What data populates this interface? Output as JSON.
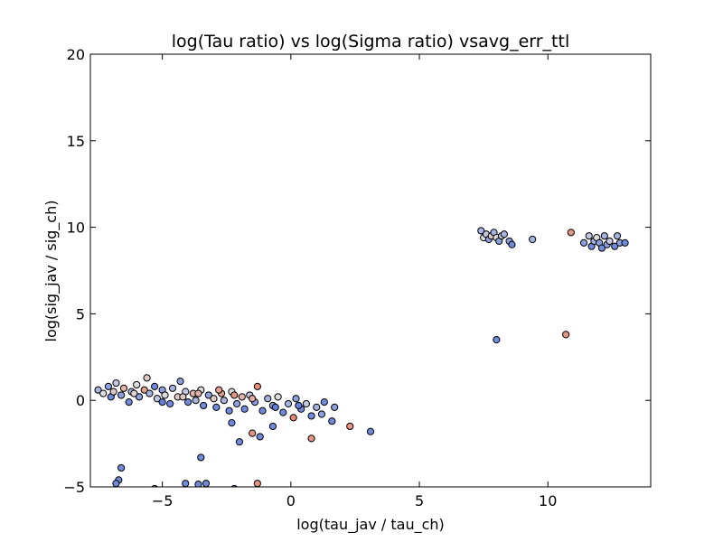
{
  "chart_data": {
    "type": "scatter",
    "title": "log(Tau ratio) vs log(Sigma ratio) vsavg_err_ttl",
    "xlabel": "log(tau_jav / tau_ch)",
    "ylabel": "log(sig_jav / sig_ch)",
    "xlim": [
      -7.8,
      14
    ],
    "ylim": [
      -5,
      20
    ],
    "xticks": [
      -5,
      0,
      5,
      10
    ],
    "xtick_labels": [
      "−5",
      "0",
      "5",
      "10"
    ],
    "yticks": [
      -5,
      0,
      5,
      10,
      15,
      20
    ],
    "ytick_labels": [
      "−5",
      "0",
      "5",
      "10",
      "15",
      "20"
    ],
    "grid": false,
    "legend": "none",
    "colormap": "coolwarm",
    "colors": {
      "low": "#5875dd",
      "mid": "#dcdde0",
      "high": "#e8775d",
      "edge": "#000000"
    },
    "points": [
      {
        "x": -7.5,
        "y": 0.6,
        "c": 0.3
      },
      {
        "x": -7.3,
        "y": 0.4,
        "c": 0.5
      },
      {
        "x": -7.1,
        "y": 0.8,
        "c": 0.2
      },
      {
        "x": -7.0,
        "y": 0.2,
        "c": 0.1
      },
      {
        "x": -6.9,
        "y": 0.5,
        "c": 0.6
      },
      {
        "x": -6.8,
        "y": 1.0,
        "c": 0.4
      },
      {
        "x": -6.6,
        "y": 0.3,
        "c": 0.2
      },
      {
        "x": -6.5,
        "y": 0.7,
        "c": 0.7
      },
      {
        "x": -6.3,
        "y": -0.1,
        "c": 0.1
      },
      {
        "x": -6.2,
        "y": 0.5,
        "c": 0.3
      },
      {
        "x": -6.0,
        "y": 0.9,
        "c": 0.5
      },
      {
        "x": -5.9,
        "y": 0.2,
        "c": 0.2
      },
      {
        "x": -5.7,
        "y": 0.6,
        "c": 0.8
      },
      {
        "x": -5.6,
        "y": 1.3,
        "c": 0.6
      },
      {
        "x": -5.5,
        "y": 0.4,
        "c": 0.3
      },
      {
        "x": -5.3,
        "y": 0.8,
        "c": 0.1
      },
      {
        "x": -5.2,
        "y": 0.1,
        "c": 0.4
      },
      {
        "x": -5.0,
        "y": 0.6,
        "c": 0.2
      },
      {
        "x": -4.9,
        "y": 0.3,
        "c": 0.5
      },
      {
        "x": -4.7,
        "y": -0.2,
        "c": 0.1
      },
      {
        "x": -4.6,
        "y": 0.7,
        "c": 0.3
      },
      {
        "x": -4.4,
        "y": 0.2,
        "c": 0.6
      },
      {
        "x": -4.3,
        "y": 1.1,
        "c": 0.2
      },
      {
        "x": -4.1,
        "y": 0.5,
        "c": 0.4
      },
      {
        "x": -4.0,
        "y": -0.1,
        "c": 0.1
      },
      {
        "x": -3.8,
        "y": 0.4,
        "c": 0.7
      },
      {
        "x": -3.7,
        "y": 0.0,
        "c": 0.3
      },
      {
        "x": -3.5,
        "y": 0.6,
        "c": 0.5
      },
      {
        "x": -3.4,
        "y": -0.3,
        "c": 0.1
      },
      {
        "x": -3.2,
        "y": 0.3,
        "c": 0.2
      },
      {
        "x": -3.0,
        "y": 0.1,
        "c": 0.6
      },
      {
        "x": -2.9,
        "y": -0.4,
        "c": 0.1
      },
      {
        "x": -2.7,
        "y": 0.4,
        "c": 0.8
      },
      {
        "x": -2.6,
        "y": 0.0,
        "c": 0.3
      },
      {
        "x": -2.4,
        "y": -0.6,
        "c": 0.1
      },
      {
        "x": -2.3,
        "y": 0.5,
        "c": 0.5
      },
      {
        "x": -2.1,
        "y": -0.2,
        "c": 0.2
      },
      {
        "x": -1.9,
        "y": 0.2,
        "c": 0.7
      },
      {
        "x": -1.8,
        "y": -0.5,
        "c": 0.1
      },
      {
        "x": -1.6,
        "y": 0.3,
        "c": 0.4
      },
      {
        "x": -1.4,
        "y": -0.1,
        "c": 0.2
      },
      {
        "x": -1.3,
        "y": 0.8,
        "c": 0.9
      },
      {
        "x": -1.1,
        "y": -0.6,
        "c": 0.1
      },
      {
        "x": -0.9,
        "y": 0.1,
        "c": 0.3
      },
      {
        "x": -0.7,
        "y": -0.3,
        "c": 0.2
      },
      {
        "x": -0.5,
        "y": 0.2,
        "c": 0.5
      },
      {
        "x": -0.3,
        "y": -0.7,
        "c": 0.1
      },
      {
        "x": -0.1,
        "y": -0.2,
        "c": 0.3
      },
      {
        "x": 0.1,
        "y": -1.0,
        "c": 0.9
      },
      {
        "x": 0.2,
        "y": 0.1,
        "c": 0.2
      },
      {
        "x": 0.4,
        "y": -0.5,
        "c": 0.1
      },
      {
        "x": 0.6,
        "y": -0.2,
        "c": 0.4
      },
      {
        "x": 0.8,
        "y": -0.9,
        "c": 0.1
      },
      {
        "x": 1.0,
        "y": -0.4,
        "c": 0.3
      },
      {
        "x": 1.2,
        "y": -0.8,
        "c": 0.2
      },
      {
        "x": 1.3,
        "y": -0.1,
        "c": 0.1
      },
      {
        "x": 1.6,
        "y": -1.2,
        "c": 0.1
      },
      {
        "x": 1.7,
        "y": -0.4,
        "c": 0.2
      },
      {
        "x": -5.0,
        "y": -0.1,
        "c": 0.05
      },
      {
        "x": -4.2,
        "y": 0.2,
        "c": 0.6
      },
      {
        "x": -3.6,
        "y": 0.4,
        "c": 0.7
      },
      {
        "x": -2.8,
        "y": 0.6,
        "c": 0.8
      },
      {
        "x": -2.2,
        "y": 0.3,
        "c": 0.85
      },
      {
        "x": -1.5,
        "y": 0.1,
        "c": 0.75
      },
      {
        "x": -0.6,
        "y": -0.4,
        "c": 0.05
      },
      {
        "x": 0.3,
        "y": -0.3,
        "c": 0.05
      },
      {
        "x": -6.1,
        "y": 0.4,
        "c": 0.55
      },
      {
        "x": -2.3,
        "y": -1.3,
        "c": 0.1
      },
      {
        "x": -2.0,
        "y": -2.4,
        "c": 0.1
      },
      {
        "x": -1.5,
        "y": -1.9,
        "c": 0.85
      },
      {
        "x": -1.2,
        "y": -2.1,
        "c": 0.1
      },
      {
        "x": -0.7,
        "y": -1.5,
        "c": 0.1
      },
      {
        "x": 0.8,
        "y": -2.2,
        "c": 0.85
      },
      {
        "x": 2.3,
        "y": -1.5,
        "c": 0.85
      },
      {
        "x": 3.1,
        "y": -1.8,
        "c": 0.1
      },
      {
        "x": -3.5,
        "y": -3.3,
        "c": 0.1
      },
      {
        "x": -6.6,
        "y": -3.9,
        "c": 0.1
      },
      {
        "x": -6.7,
        "y": -4.6,
        "c": 0.1
      },
      {
        "x": -6.8,
        "y": -4.8,
        "c": 0.1
      },
      {
        "x": -4.1,
        "y": -4.8,
        "c": 0.1
      },
      {
        "x": -3.6,
        "y": -4.85,
        "c": 0.1
      },
      {
        "x": -3.3,
        "y": -4.8,
        "c": 0.1
      },
      {
        "x": -1.3,
        "y": -4.8,
        "c": 0.85
      },
      {
        "x": -5.3,
        "y": -5.1,
        "c": 0.1
      },
      {
        "x": -2.2,
        "y": -5.1,
        "c": 0.1
      },
      {
        "x": 7.4,
        "y": 9.8,
        "c": 0.3
      },
      {
        "x": 7.5,
        "y": 9.4,
        "c": 0.5
      },
      {
        "x": 7.6,
        "y": 9.6,
        "c": 0.4
      },
      {
        "x": 7.7,
        "y": 9.3,
        "c": 0.2
      },
      {
        "x": 7.8,
        "y": 9.5,
        "c": 0.6
      },
      {
        "x": 7.9,
        "y": 9.7,
        "c": 0.3
      },
      {
        "x": 8.0,
        "y": 9.4,
        "c": 0.5
      },
      {
        "x": 8.1,
        "y": 9.2,
        "c": 0.2
      },
      {
        "x": 8.2,
        "y": 9.5,
        "c": 0.4
      },
      {
        "x": 8.3,
        "y": 9.6,
        "c": 0.3
      },
      {
        "x": 8.5,
        "y": 9.2,
        "c": 0.2
      },
      {
        "x": 8.6,
        "y": 9.0,
        "c": 0.1
      },
      {
        "x": 9.4,
        "y": 9.3,
        "c": 0.3
      },
      {
        "x": 10.9,
        "y": 9.7,
        "c": 0.85
      },
      {
        "x": 11.4,
        "y": 9.1,
        "c": 0.2
      },
      {
        "x": 11.6,
        "y": 9.5,
        "c": 0.4
      },
      {
        "x": 11.7,
        "y": 8.9,
        "c": 0.1
      },
      {
        "x": 11.8,
        "y": 9.2,
        "c": 0.3
      },
      {
        "x": 11.9,
        "y": 9.4,
        "c": 0.5
      },
      {
        "x": 12.0,
        "y": 9.1,
        "c": 0.2
      },
      {
        "x": 12.1,
        "y": 8.8,
        "c": 0.1
      },
      {
        "x": 12.2,
        "y": 9.5,
        "c": 0.3
      },
      {
        "x": 12.3,
        "y": 9.0,
        "c": 0.2
      },
      {
        "x": 12.4,
        "y": 9.2,
        "c": 0.4
      },
      {
        "x": 12.6,
        "y": 8.9,
        "c": 0.1
      },
      {
        "x": 12.7,
        "y": 9.5,
        "c": 0.3
      },
      {
        "x": 12.8,
        "y": 9.1,
        "c": 0.2
      },
      {
        "x": 13.0,
        "y": 9.1,
        "c": 0.1
      },
      {
        "x": 8.0,
        "y": 3.5,
        "c": 0.1
      },
      {
        "x": 10.7,
        "y": 3.8,
        "c": 0.85
      }
    ]
  }
}
